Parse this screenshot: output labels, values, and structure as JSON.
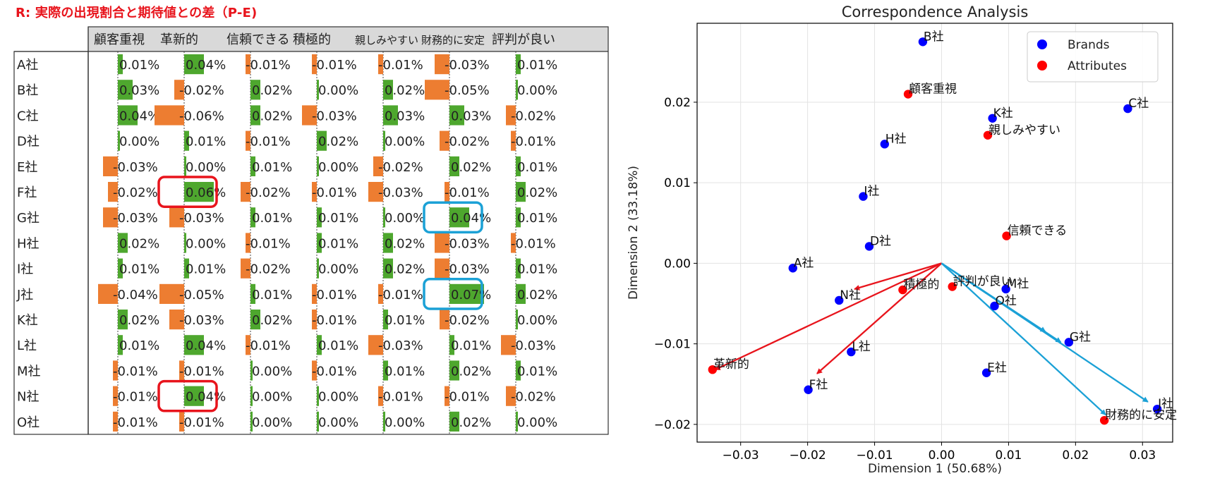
{
  "table_title": "R: 実際の出現割合と期待値との差（P-E)",
  "chart_data": [
    {
      "type": "table",
      "title": "R: 実際の出現割合と期待値との差（P-E)",
      "columns": [
        "顧客重視",
        "革新的",
        "信頼できる",
        "積極的",
        "親しみやすい",
        "財務的に安定",
        "評判が良い"
      ],
      "rows": [
        {
          "label": "A社",
          "cells": [
            "0.01%",
            "0.04%",
            "-0.01%",
            "-0.01%",
            "-0.01%",
            "-0.03%",
            "0.01%"
          ]
        },
        {
          "label": "B社",
          "cells": [
            "0.03%",
            "-0.02%",
            "0.02%",
            "0.00%",
            "0.02%",
            "-0.05%",
            "0.00%"
          ]
        },
        {
          "label": "C社",
          "cells": [
            "0.04%",
            "-0.06%",
            "0.02%",
            "-0.03%",
            "0.03%",
            "0.03%",
            "-0.02%"
          ]
        },
        {
          "label": "D社",
          "cells": [
            "0.00%",
            "0.01%",
            "-0.01%",
            "0.02%",
            "0.00%",
            "-0.02%",
            "-0.01%"
          ]
        },
        {
          "label": "E社",
          "cells": [
            "-0.03%",
            "0.00%",
            "0.01%",
            "0.00%",
            "-0.02%",
            "0.02%",
            "0.01%"
          ]
        },
        {
          "label": "F社",
          "cells": [
            "-0.02%",
            "0.06%",
            "-0.02%",
            "-0.01%",
            "-0.03%",
            "-0.01%",
            "0.02%"
          ]
        },
        {
          "label": "G社",
          "cells": [
            "-0.03%",
            "-0.03%",
            "0.01%",
            "0.01%",
            "0.00%",
            "0.04%",
            "0.01%"
          ]
        },
        {
          "label": "H社",
          "cells": [
            "0.02%",
            "0.00%",
            "-0.01%",
            "0.01%",
            "0.02%",
            "-0.03%",
            "-0.01%"
          ]
        },
        {
          "label": "I社",
          "cells": [
            "0.01%",
            "0.01%",
            "-0.02%",
            "0.00%",
            "0.02%",
            "-0.03%",
            "0.01%"
          ]
        },
        {
          "label": "J社",
          "cells": [
            "-0.04%",
            "-0.05%",
            "0.01%",
            "-0.01%",
            "-0.01%",
            "0.07%",
            "0.02%"
          ]
        },
        {
          "label": "K社",
          "cells": [
            "0.02%",
            "-0.03%",
            "0.02%",
            "-0.01%",
            "0.01%",
            "-0.02%",
            "0.00%"
          ]
        },
        {
          "label": "L社",
          "cells": [
            "0.01%",
            "0.04%",
            "-0.01%",
            "0.01%",
            "-0.03%",
            "0.01%",
            "-0.03%"
          ]
        },
        {
          "label": "M社",
          "cells": [
            "-0.01%",
            "-0.01%",
            "0.00%",
            "-0.01%",
            "0.01%",
            "0.02%",
            "0.01%"
          ]
        },
        {
          "label": "N社",
          "cells": [
            "-0.01%",
            "0.04%",
            "0.00%",
            "0.00%",
            "-0.01%",
            "-0.01%",
            "-0.02%"
          ]
        },
        {
          "label": "O社",
          "cells": [
            "-0.01%",
            "-0.01%",
            "0.00%",
            "0.00%",
            "0.00%",
            "0.02%",
            "0.00%"
          ]
        }
      ],
      "positive_color": "#4ea72e",
      "negative_color": "#ed7d31",
      "highlights": [
        {
          "row": "F社",
          "column": "革新的",
          "color": "#e8141c"
        },
        {
          "row": "N社",
          "column": "革新的",
          "color": "#e8141c"
        },
        {
          "row": "G社",
          "column": "財務的に安定",
          "color": "#1ba1d6"
        },
        {
          "row": "J社",
          "column": "財務的に安定",
          "color": "#1ba1d6"
        }
      ]
    },
    {
      "type": "scatter",
      "title": "Correspondence Analysis",
      "xlabel": "Dimension 1 (50.68%)",
      "ylabel": "Dimension 2 (33.18%)",
      "xlim": [
        -0.0365,
        0.0345
      ],
      "ylim": [
        -0.0222,
        0.0298
      ],
      "xticks": [
        -0.03,
        -0.02,
        -0.01,
        0.0,
        0.01,
        0.02,
        0.03
      ],
      "yticks": [
        -0.02,
        -0.01,
        0.0,
        0.01,
        0.02
      ],
      "xtick_labels": [
        "−0.03",
        "−0.02",
        "−0.01",
        "0.00",
        "0.01",
        "0.02",
        "0.03"
      ],
      "ytick_labels": [
        "−0.02",
        "−0.01",
        "0.00",
        "0.01",
        "0.02"
      ],
      "grid": true,
      "legend_placement": "top-right",
      "series": [
        {
          "name": "Brands",
          "color": "#0000ff",
          "points": [
            {
              "label": "A社",
              "x": -0.0222,
              "y": -0.0006
            },
            {
              "label": "B社",
              "x": -0.0028,
              "y": 0.0275
            },
            {
              "label": "C社",
              "x": 0.0278,
              "y": 0.0192
            },
            {
              "label": "D社",
              "x": -0.0108,
              "y": 0.0021
            },
            {
              "label": "E社",
              "x": 0.0067,
              "y": -0.0136
            },
            {
              "label": "F社",
              "x": -0.0199,
              "y": -0.0157
            },
            {
              "label": "G社",
              "x": 0.019,
              "y": -0.0098
            },
            {
              "label": "H社",
              "x": -0.0085,
              "y": 0.0148
            },
            {
              "label": "I社",
              "x": -0.0117,
              "y": 0.0083
            },
            {
              "label": "J社",
              "x": 0.0322,
              "y": -0.0181
            },
            {
              "label": "K社",
              "x": 0.0076,
              "y": 0.018
            },
            {
              "label": "L社",
              "x": -0.0135,
              "y": -0.011
            },
            {
              "label": "M社",
              "x": 0.0096,
              "y": -0.0032
            },
            {
              "label": "N社",
              "x": -0.0153,
              "y": -0.0046
            },
            {
              "label": "O社",
              "x": 0.0079,
              "y": -0.0053
            }
          ]
        },
        {
          "name": "Attributes",
          "color": "#ff0000",
          "points": [
            {
              "label": "顧客重視",
              "x": -0.005,
              "y": 0.021
            },
            {
              "label": "親しみやすい",
              "x": 0.0069,
              "y": 0.0159
            },
            {
              "label": "信頼できる",
              "x": 0.0097,
              "y": 0.0034
            },
            {
              "label": "積極的",
              "x": -0.0058,
              "y": -0.0033
            },
            {
              "label": "評判が良い",
              "x": 0.0016,
              "y": -0.0029
            },
            {
              "label": "革新的",
              "x": -0.0342,
              "y": -0.0132
            },
            {
              "label": "財務的に安定",
              "x": 0.0243,
              "y": -0.0195
            }
          ]
        }
      ],
      "arrows": [
        {
          "color": "#e8141c",
          "to": [
            -0.0338,
            -0.0132
          ]
        },
        {
          "color": "#e8141c",
          "to": [
            -0.0186,
            -0.0137
          ]
        },
        {
          "color": "#e8141c",
          "to": [
            -0.013,
            -0.0032
          ]
        },
        {
          "color": "#1ba1d6",
          "to": [
            0.0178,
            -0.0098
          ]
        },
        {
          "color": "#1ba1d6",
          "to": [
            0.0155,
            -0.0085
          ]
        },
        {
          "color": "#1ba1d6",
          "to": [
            0.0308,
            -0.0172
          ]
        },
        {
          "color": "#1ba1d6",
          "to": [
            0.0245,
            -0.0188
          ]
        }
      ]
    }
  ]
}
